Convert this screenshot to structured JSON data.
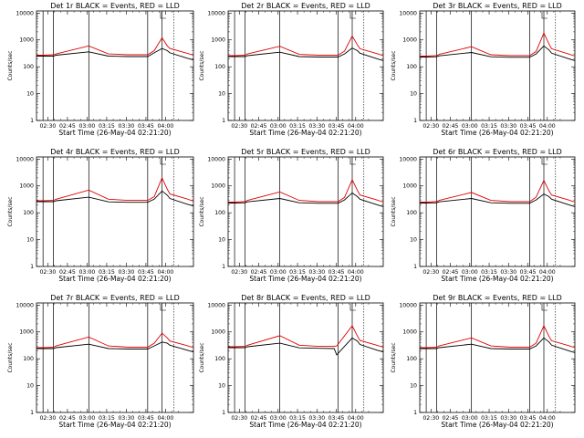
{
  "chart_data": [
    {
      "type": "line",
      "title": "Det 1r BLACK = Events, RED = LLD",
      "xlabel": "Start Time (26-May-04 02:21:20)",
      "ylabel": "Counts/sec",
      "x_ticks": [
        "02:30",
        "02:45",
        "03:00",
        "03:15",
        "03:30",
        "03:45",
        "04:00"
      ],
      "y_ticks": [
        "1",
        "10",
        "100",
        "1000",
        "10000"
      ],
      "ylim": [
        1,
        12000
      ],
      "y_scale": "log",
      "series": [
        {
          "color": "#000000",
          "x": [
            0,
            5,
            13,
            15,
            40,
            55,
            70,
            85,
            90,
            96,
            100,
            102,
            115,
            120
          ],
          "y": [
            250,
            250,
            250,
            270,
            360,
            250,
            240,
            240,
            330,
            480,
            400,
            330,
            210,
            180
          ]
        },
        {
          "color": "#e00000",
          "x": [
            0,
            5,
            13,
            15,
            40,
            55,
            70,
            85,
            90,
            96,
            100,
            102,
            115,
            120
          ],
          "y": [
            270,
            270,
            280,
            300,
            600,
            300,
            280,
            280,
            400,
            1200,
            600,
            480,
            320,
            270
          ]
        }
      ]
    },
    {
      "type": "line",
      "title": "Det 2r BLACK = Events, RED = LLD",
      "xlabel": "Start Time (26-May-04 02:21:20)",
      "ylabel": "Counts/sec",
      "x_ticks": [
        "02:30",
        "02:45",
        "03:00",
        "03:15",
        "03:30",
        "03:45",
        "04:00"
      ],
      "y_ticks": [
        "1",
        "10",
        "100",
        "1000",
        "10000"
      ],
      "ylim": [
        1,
        12000
      ],
      "y_scale": "log",
      "series": [
        {
          "color": "#000000",
          "x": [
            0,
            5,
            13,
            15,
            40,
            55,
            70,
            85,
            90,
            96,
            100,
            102,
            115,
            120
          ],
          "y": [
            240,
            240,
            240,
            260,
            350,
            240,
            230,
            230,
            300,
            500,
            400,
            320,
            200,
            170
          ]
        },
        {
          "color": "#e00000",
          "x": [
            0,
            5,
            13,
            15,
            40,
            55,
            70,
            85,
            90,
            96,
            100,
            102,
            115,
            120
          ],
          "y": [
            260,
            260,
            270,
            300,
            580,
            290,
            270,
            270,
            380,
            1400,
            650,
            470,
            310,
            260
          ]
        }
      ]
    },
    {
      "type": "line",
      "title": "Det 3r BLACK = Events, RED = LLD",
      "xlabel": "Start Time (26-May-04 02:21:20)",
      "ylabel": "Counts/sec",
      "x_ticks": [
        "02:30",
        "02:45",
        "03:00",
        "03:15",
        "03:30",
        "03:45",
        "04:00"
      ],
      "y_ticks": [
        "1",
        "10",
        "100",
        "1000",
        "10000"
      ],
      "ylim": [
        1,
        12000
      ],
      "y_scale": "log",
      "series": [
        {
          "color": "#000000",
          "x": [
            0,
            5,
            13,
            15,
            40,
            55,
            70,
            85,
            90,
            96,
            100,
            102,
            115,
            120
          ],
          "y": [
            230,
            230,
            235,
            255,
            340,
            235,
            225,
            225,
            300,
            600,
            420,
            320,
            200,
            170
          ]
        },
        {
          "color": "#e00000",
          "x": [
            0,
            5,
            13,
            15,
            40,
            55,
            70,
            85,
            90,
            96,
            100,
            102,
            115,
            120
          ],
          "y": [
            250,
            250,
            260,
            290,
            560,
            280,
            260,
            260,
            370,
            1800,
            700,
            470,
            300,
            250
          ]
        }
      ]
    },
    {
      "type": "line",
      "title": "Det 4r BLACK = Events, RED = LLD",
      "xlabel": "Start Time (26-May-04 02:21:20)",
      "ylabel": "Counts/sec",
      "x_ticks": [
        "02:30",
        "02:45",
        "03:00",
        "03:15",
        "03:30",
        "03:45",
        "04:00"
      ],
      "y_ticks": [
        "1",
        "10",
        "100",
        "1000",
        "10000"
      ],
      "ylim": [
        1,
        12000
      ],
      "y_scale": "log",
      "series": [
        {
          "color": "#000000",
          "x": [
            0,
            5,
            13,
            15,
            40,
            55,
            70,
            85,
            90,
            96,
            100,
            102,
            115,
            120
          ],
          "y": [
            260,
            260,
            260,
            280,
            380,
            255,
            245,
            245,
            320,
            650,
            450,
            340,
            210,
            180
          ]
        },
        {
          "color": "#e00000",
          "x": [
            0,
            5,
            13,
            15,
            40,
            55,
            70,
            85,
            90,
            96,
            100,
            102,
            115,
            120
          ],
          "y": [
            280,
            280,
            290,
            320,
            700,
            320,
            290,
            290,
            400,
            2000,
            750,
            500,
            330,
            270
          ]
        }
      ]
    },
    {
      "type": "line",
      "title": "Det 5r BLACK = Events, RED = LLD",
      "xlabel": "Start Time (26-May-04 02:21:20)",
      "ylabel": "Counts/sec",
      "x_ticks": [
        "02:30",
        "02:45",
        "03:00",
        "03:15",
        "03:30",
        "03:45",
        "04:00"
      ],
      "y_ticks": [
        "1",
        "10",
        "100",
        "1000",
        "10000"
      ],
      "ylim": [
        1,
        12000
      ],
      "y_scale": "log",
      "series": [
        {
          "color": "#000000",
          "x": [
            0,
            5,
            13,
            15,
            40,
            55,
            70,
            85,
            90,
            96,
            100,
            102,
            115,
            120
          ],
          "y": [
            230,
            230,
            235,
            255,
            340,
            235,
            225,
            225,
            300,
            550,
            400,
            320,
            200,
            170
          ]
        },
        {
          "color": "#e00000",
          "x": [
            0,
            5,
            13,
            15,
            40,
            55,
            70,
            85,
            90,
            96,
            100,
            102,
            115,
            120
          ],
          "y": [
            250,
            250,
            260,
            290,
            600,
            290,
            260,
            260,
            370,
            1700,
            680,
            460,
            300,
            250
          ]
        }
      ]
    },
    {
      "type": "line",
      "title": "Det 6r BLACK = Events, RED = LLD",
      "xlabel": "Start Time (26-May-04 02:21:20)",
      "ylabel": "Counts/sec",
      "x_ticks": [
        "02:30",
        "02:45",
        "03:00",
        "03:15",
        "03:30",
        "03:45",
        "04:00"
      ],
      "y_ticks": [
        "1",
        "10",
        "100",
        "1000",
        "10000"
      ],
      "ylim": [
        1,
        12000
      ],
      "y_scale": "log",
      "series": [
        {
          "color": "#000000",
          "x": [
            0,
            5,
            13,
            15,
            40,
            55,
            70,
            85,
            90,
            96,
            100,
            102,
            115,
            120
          ],
          "y": [
            230,
            230,
            235,
            255,
            340,
            235,
            225,
            225,
            300,
            500,
            400,
            320,
            200,
            170
          ]
        },
        {
          "color": "#e00000",
          "x": [
            0,
            5,
            13,
            15,
            40,
            55,
            70,
            85,
            90,
            96,
            100,
            102,
            115,
            120
          ],
          "y": [
            250,
            250,
            260,
            290,
            570,
            290,
            260,
            260,
            380,
            1600,
            650,
            460,
            300,
            250
          ]
        }
      ]
    },
    {
      "type": "line",
      "title": "Det 7r BLACK = Events, RED = LLD",
      "xlabel": "Start Time (26-May-04 02:21:20)",
      "ylabel": "Counts/sec",
      "x_ticks": [
        "02:30",
        "02:45",
        "03:00",
        "03:15",
        "03:30",
        "03:45",
        "04:00"
      ],
      "y_ticks": [
        "1",
        "10",
        "100",
        "1000",
        "10000"
      ],
      "ylim": [
        1,
        12000
      ],
      "y_scale": "log",
      "series": [
        {
          "color": "#000000",
          "x": [
            0,
            5,
            13,
            15,
            40,
            55,
            70,
            85,
            90,
            96,
            100,
            102,
            115,
            120
          ],
          "y": [
            240,
            240,
            240,
            260,
            350,
            240,
            230,
            230,
            300,
            420,
            380,
            320,
            210,
            180
          ]
        },
        {
          "color": "#e00000",
          "x": [
            0,
            5,
            13,
            15,
            40,
            55,
            70,
            85,
            90,
            96,
            100,
            102,
            115,
            120
          ],
          "y": [
            260,
            260,
            270,
            300,
            650,
            300,
            270,
            270,
            380,
            900,
            600,
            460,
            310,
            260
          ]
        }
      ]
    },
    {
      "type": "line",
      "title": "Det 8r BLACK = Events, RED = LLD",
      "xlabel": "Start Time (26-May-04 02:21:20)",
      "ylabel": "Counts/sec",
      "x_ticks": [
        "02:30",
        "02:45",
        "03:00",
        "03:15",
        "03:30",
        "03:45",
        "04:00"
      ],
      "y_ticks": [
        "1",
        "10",
        "100",
        "1000",
        "10000"
      ],
      "ylim": [
        1,
        12000
      ],
      "y_scale": "log",
      "series": [
        {
          "color": "#000000",
          "x": [
            0,
            5,
            13,
            15,
            40,
            55,
            70,
            82,
            84,
            96,
            100,
            102,
            115,
            120
          ],
          "y": [
            260,
            260,
            260,
            280,
            380,
            255,
            245,
            240,
            140,
            600,
            450,
            340,
            210,
            180
          ]
        },
        {
          "color": "#e00000",
          "x": [
            0,
            5,
            13,
            15,
            40,
            55,
            70,
            82,
            84,
            96,
            100,
            102,
            115,
            120
          ],
          "y": [
            280,
            280,
            290,
            320,
            720,
            320,
            290,
            290,
            300,
            1700,
            700,
            480,
            320,
            270
          ]
        }
      ]
    },
    {
      "type": "line",
      "title": "Det 9r BLACK = Events, RED = LLD",
      "xlabel": "Start Time (26-May-04 02:21:20)",
      "ylabel": "Counts/sec",
      "x_ticks": [
        "02:30",
        "02:45",
        "03:00",
        "03:15",
        "03:30",
        "03:45",
        "04:00"
      ],
      "y_ticks": [
        "1",
        "10",
        "100",
        "1000",
        "10000"
      ],
      "ylim": [
        1,
        12000
      ],
      "y_scale": "log",
      "series": [
        {
          "color": "#000000",
          "x": [
            0,
            5,
            13,
            15,
            40,
            55,
            70,
            85,
            90,
            96,
            100,
            102,
            115,
            120
          ],
          "y": [
            240,
            240,
            240,
            260,
            350,
            240,
            230,
            230,
            300,
            600,
            420,
            320,
            200,
            170
          ]
        },
        {
          "color": "#e00000",
          "x": [
            0,
            5,
            13,
            15,
            40,
            55,
            70,
            85,
            90,
            96,
            100,
            102,
            115,
            120
          ],
          "y": [
            260,
            260,
            270,
            300,
            600,
            300,
            270,
            270,
            380,
            1700,
            680,
            470,
            310,
            260
          ]
        }
      ]
    }
  ]
}
